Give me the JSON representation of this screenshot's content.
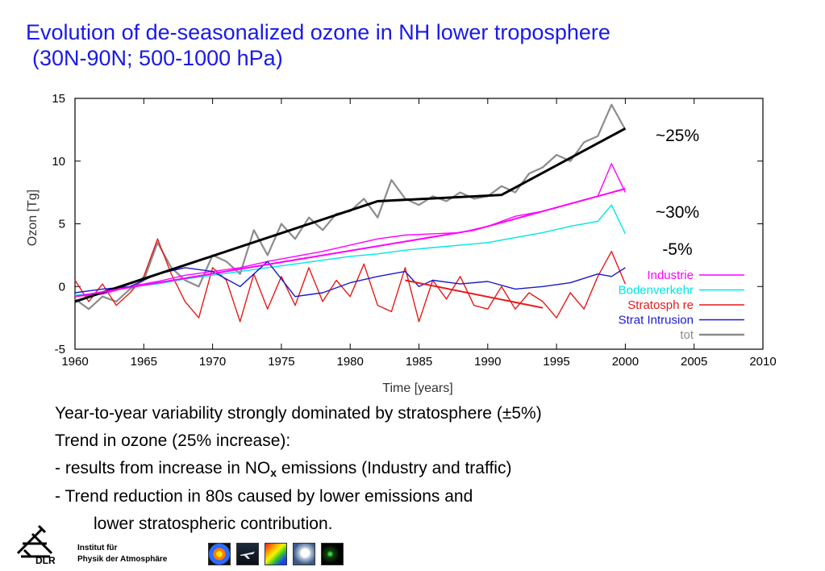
{
  "slide": {
    "title_line1": "Evolution of de-seasonalized ozone in NH lower troposphere",
    "title_line2": "(30N-90N; 500-1000 hPa)",
    "bullets": [
      "Year-to-year variability strongly dominated by stratosphere (±5%)",
      "Trend in ozone (25% increase):"
    ],
    "bullet3_pre": "- results from increase in NO",
    "bullet3_sub": "x",
    "bullet3_post": " emissions (Industry and traffic)",
    "bullet4": "- Trend reduction in 80s caused by lower emissions and",
    "bullet5": "lower stratospheric contribution.",
    "footer": {
      "logo_text": "DLR",
      "institute_line1": "Institut für",
      "institute_line2": "Physik der Atmosphäre",
      "thumb_icons": [
        "ozone-map-thumbnail-icon",
        "aircraft-thumbnail-icon",
        "global-map-thumbnail-icon",
        "cloud-thumbnail-icon",
        "earth-night-thumbnail-icon"
      ]
    }
  },
  "chart_data": {
    "type": "line",
    "xlabel": "Time [years]",
    "ylabel": "Ozon [Tg]",
    "xlim": [
      1960,
      2010
    ],
    "ylim": [
      -5,
      15
    ],
    "xticks": [
      1960,
      1965,
      1970,
      1975,
      1980,
      1985,
      1990,
      1995,
      2000,
      2005,
      2010
    ],
    "yticks": [
      -5,
      0,
      5,
      10,
      15
    ],
    "legend_position": "right",
    "series": [
      {
        "name": "Industrie",
        "color": "#ff00ff",
        "x": [
          1960,
          1962,
          1964,
          1966,
          1968,
          1970,
          1972,
          1974,
          1976,
          1978,
          1980,
          1982,
          1984,
          1986,
          1988,
          1990,
          1992,
          1994,
          1996,
          1998,
          1999,
          2000
        ],
        "values": [
          -0.8,
          -0.6,
          0.0,
          0.4,
          0.9,
          1.2,
          1.5,
          2.0,
          2.4,
          2.8,
          3.3,
          3.8,
          4.1,
          4.2,
          4.3,
          4.8,
          5.6,
          6.0,
          6.6,
          7.2,
          9.8,
          7.5
        ]
      },
      {
        "name": "Bodenverkehr",
        "color": "#00e5e5",
        "x": [
          1960,
          1962,
          1964,
          1966,
          1968,
          1970,
          1972,
          1974,
          1976,
          1978,
          1980,
          1982,
          1984,
          1986,
          1988,
          1990,
          1992,
          1994,
          1996,
          1998,
          1999,
          2000
        ],
        "values": [
          -0.7,
          -0.5,
          0.0,
          0.2,
          0.6,
          0.9,
          1.2,
          1.5,
          1.8,
          2.1,
          2.4,
          2.6,
          2.9,
          3.1,
          3.3,
          3.5,
          3.9,
          4.3,
          4.8,
          5.2,
          6.5,
          4.2
        ]
      },
      {
        "name": "Stratosph re",
        "color": "#e61a1a",
        "x": [
          1960,
          1961,
          1962,
          1963,
          1964,
          1965,
          1966,
          1967,
          1968,
          1969,
          1970,
          1971,
          1972,
          1973,
          1974,
          1975,
          1976,
          1977,
          1978,
          1979,
          1980,
          1981,
          1982,
          1983,
          1984,
          1985,
          1986,
          1987,
          1988,
          1989,
          1990,
          1991,
          1992,
          1993,
          1994,
          1995,
          1996,
          1997,
          1998,
          1999,
          2000
        ],
        "values": [
          0.5,
          -1.2,
          0.2,
          -1.5,
          -0.5,
          0.8,
          3.8,
          1.0,
          -1.2,
          -2.5,
          1.5,
          0.5,
          -2.8,
          1.0,
          -1.8,
          0.8,
          -1.5,
          1.5,
          -1.2,
          0.5,
          -0.8,
          1.8,
          -1.5,
          -2.0,
          1.5,
          -2.8,
          0.5,
          -1.0,
          0.8,
          -1.5,
          -1.8,
          0.0,
          -1.8,
          -0.5,
          -1.2,
          -2.5,
          -0.5,
          -1.8,
          0.8,
          2.8,
          0.2
        ]
      },
      {
        "name": "Strat Intrusion",
        "color": "#1a1acc",
        "x": [
          1960,
          1962,
          1964,
          1966,
          1968,
          1970,
          1972,
          1974,
          1976,
          1978,
          1980,
          1982,
          1984,
          1985,
          1986,
          1988,
          1990,
          1992,
          1994,
          1996,
          1998,
          1999,
          2000
        ],
        "values": [
          -0.5,
          -0.2,
          0.0,
          1.0,
          1.5,
          1.2,
          0.0,
          2.0,
          -0.8,
          -0.5,
          0.3,
          0.8,
          1.2,
          0.0,
          0.5,
          0.2,
          0.4,
          -0.2,
          0.0,
          0.3,
          1.0,
          0.8,
          1.5
        ]
      },
      {
        "name": "tot",
        "color": "#8c8c8c",
        "x": [
          1960,
          1961,
          1962,
          1963,
          1964,
          1965,
          1966,
          1967,
          1968,
          1969,
          1970,
          1971,
          1972,
          1973,
          1974,
          1975,
          1976,
          1977,
          1978,
          1979,
          1980,
          1981,
          1982,
          1983,
          1984,
          1985,
          1986,
          1987,
          1988,
          1989,
          1990,
          1991,
          1992,
          1993,
          1994,
          1995,
          1996,
          1997,
          1998,
          1999,
          2000
        ],
        "values": [
          -1.0,
          -1.8,
          -0.8,
          -1.2,
          -0.2,
          0.5,
          3.5,
          1.5,
          0.5,
          0.0,
          2.5,
          2.0,
          1.0,
          4.5,
          2.5,
          5.0,
          3.8,
          5.5,
          4.5,
          5.8,
          6.0,
          7.0,
          5.5,
          8.5,
          7.0,
          6.5,
          7.2,
          6.8,
          7.5,
          7.0,
          7.2,
          8.0,
          7.5,
          9.0,
          9.5,
          10.5,
          10.0,
          11.5,
          12.0,
          14.5,
          12.5
        ]
      }
    ],
    "trend_lines": [
      {
        "color": "#000000",
        "x": [
          1960,
          1982,
          1991,
          2000
        ],
        "values": [
          -1.2,
          6.8,
          7.3,
          12.6
        ]
      },
      {
        "color": "#ff00ff",
        "x": [
          1960,
          1989,
          2000
        ],
        "values": [
          -0.8,
          4.5,
          7.8
        ]
      },
      {
        "color": "#e61a1a",
        "x": [
          1984,
          1994
        ],
        "values": [
          0.5,
          -1.7
        ]
      }
    ],
    "annotations": [
      "~25%",
      "~30%",
      "-5%"
    ]
  }
}
